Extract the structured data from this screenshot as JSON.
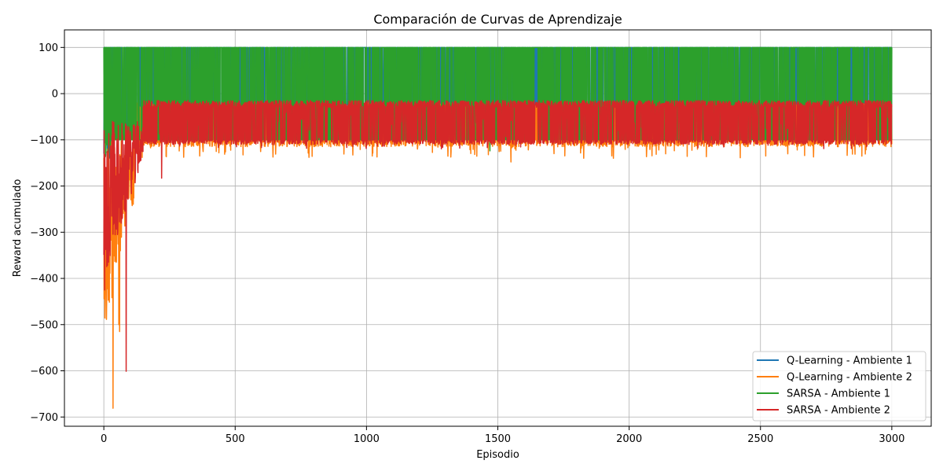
{
  "chart_data": {
    "type": "line",
    "title": "Comparación de Curvas de Aprendizaje",
    "xlabel": "Episodio",
    "ylabel": "Reward acumulado",
    "xlim": [
      -150,
      3150
    ],
    "ylim": [
      -720,
      138
    ],
    "xticks": [
      0,
      500,
      1000,
      1500,
      2000,
      2500,
      3000
    ],
    "yticks": [
      100,
      0,
      -100,
      -200,
      -300,
      -400,
      -500,
      -600,
      -700
    ],
    "grid": true,
    "legend_position": "lower-right",
    "episodes": 3000,
    "series": [
      {
        "name": "Q-Learning - Ambiente 1",
        "color": "#1f77b4",
        "description_values": {
          "max": 100,
          "min": -100,
          "typical": "oscillates between -100 and 100"
        },
        "keypoints": [
          [
            0,
            -100
          ],
          [
            10,
            100
          ],
          [
            20,
            -100
          ],
          [
            40,
            100
          ],
          [
            60,
            -100
          ],
          [
            100,
            100
          ],
          [
            500,
            -100
          ],
          [
            1000,
            100
          ],
          [
            1500,
            -100
          ],
          [
            2000,
            100
          ],
          [
            2500,
            -100
          ],
          [
            3000,
            100
          ]
        ]
      },
      {
        "name": "Q-Learning - Ambiente 2",
        "color": "#ff7f0e",
        "description_values": {
          "max": -13,
          "min": -681,
          "typical": "between -120 and -15 after episode 200"
        },
        "keypoints": [
          [
            0,
            -150
          ],
          [
            5,
            -330
          ],
          [
            10,
            -250
          ],
          [
            20,
            -140
          ],
          [
            30,
            -350
          ],
          [
            35,
            -681
          ],
          [
            45,
            -220
          ],
          [
            55,
            -500
          ],
          [
            60,
            -515
          ],
          [
            70,
            -300
          ],
          [
            80,
            -340
          ],
          [
            90,
            -200
          ],
          [
            100,
            -170
          ],
          [
            150,
            -120
          ],
          [
            200,
            -40
          ],
          [
            300,
            -100
          ],
          [
            500,
            -30
          ],
          [
            700,
            -140
          ],
          [
            1000,
            -120
          ],
          [
            1550,
            -148
          ],
          [
            1900,
            -115
          ],
          [
            2000,
            -140
          ],
          [
            2500,
            -120
          ],
          [
            2800,
            -110
          ],
          [
            3000,
            -120
          ]
        ]
      },
      {
        "name": "SARSA - Ambiente 1",
        "color": "#2ca02c",
        "description_values": {
          "max": 100,
          "min": -124,
          "typical": "oscillates between -100 and 100"
        },
        "keypoints": [
          [
            0,
            -100
          ],
          [
            5,
            100
          ],
          [
            10,
            -100
          ],
          [
            50,
            100
          ],
          [
            100,
            -100
          ],
          [
            500,
            100
          ],
          [
            1000,
            -100
          ],
          [
            1470,
            -124
          ],
          [
            1500,
            100
          ],
          [
            2000,
            -100
          ],
          [
            2500,
            100
          ],
          [
            3000,
            -100
          ]
        ]
      },
      {
        "name": "SARSA - Ambiente 2",
        "color": "#d62728",
        "description_values": {
          "max": -15,
          "min": -601,
          "typical": "between -110 and -15 after episode 200"
        },
        "keypoints": [
          [
            0,
            -160
          ],
          [
            3,
            -425
          ],
          [
            8,
            -390
          ],
          [
            12,
            -100
          ],
          [
            20,
            -340
          ],
          [
            25,
            -30
          ],
          [
            30,
            -140
          ],
          [
            40,
            -300
          ],
          [
            50,
            -200
          ],
          [
            60,
            -320
          ],
          [
            70,
            -150
          ],
          [
            80,
            -330
          ],
          [
            85,
            -601
          ],
          [
            90,
            -250
          ],
          [
            110,
            -100
          ],
          [
            130,
            -190
          ],
          [
            140,
            -220
          ],
          [
            160,
            -60
          ],
          [
            220,
            -183
          ],
          [
            300,
            -25
          ],
          [
            500,
            -20
          ],
          [
            1000,
            -20
          ],
          [
            1500,
            -20
          ],
          [
            2000,
            -20
          ],
          [
            2500,
            -20
          ],
          [
            3000,
            -20
          ]
        ]
      }
    ]
  }
}
